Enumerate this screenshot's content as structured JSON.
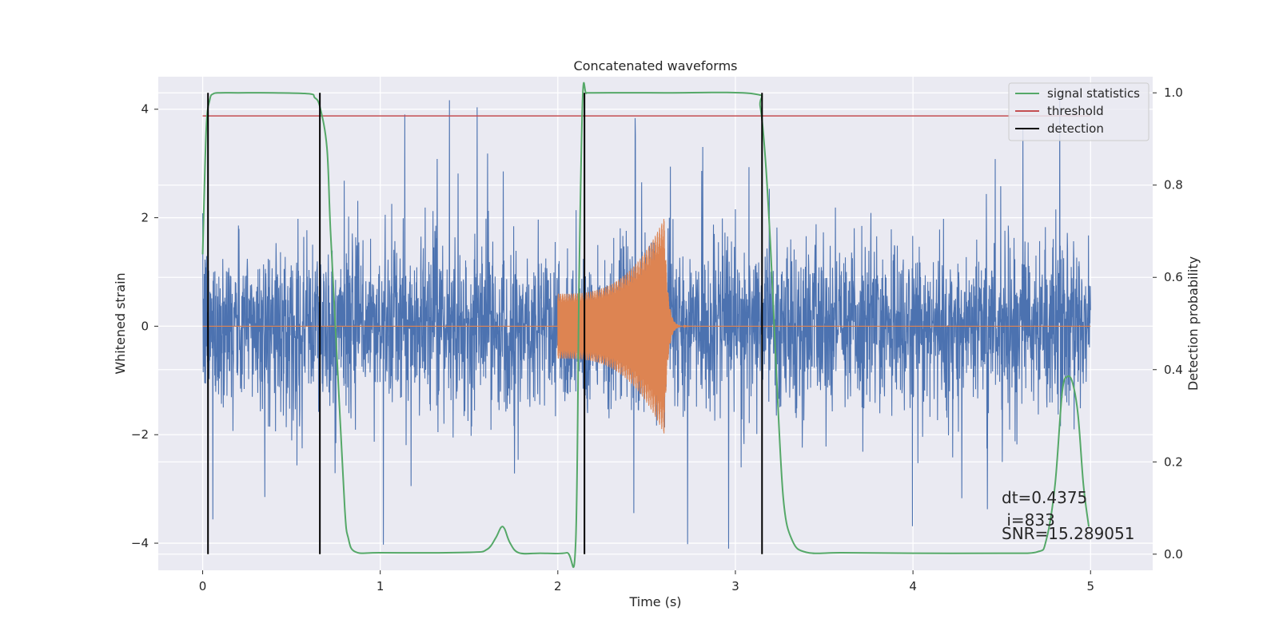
{
  "chart_data": {
    "type": "line",
    "title": "Concatenated waveforms",
    "xlabel": "Time (s)",
    "ylabel": "Whitened strain",
    "y2label": "Detection probability",
    "xlim": [
      -0.25,
      5.35
    ],
    "ylim": [
      -4.5,
      4.6
    ],
    "y2lim": [
      -0.035,
      1.035
    ],
    "xticks": [
      0,
      1,
      2,
      3,
      4,
      5
    ],
    "yticks": [
      -4,
      -2,
      0,
      2,
      4
    ],
    "y2ticks": [
      0.0,
      0.2,
      0.4,
      0.6,
      0.8,
      1.0
    ],
    "y2tick_labels": [
      "0.0",
      "0.2",
      "0.4",
      "0.6",
      "0.8",
      "1.0"
    ],
    "grid": true,
    "legend_position": "top-right",
    "colors": {
      "strain": "#4c72b0",
      "template": "#dd8452",
      "statistic": "#55a868",
      "threshold": "#c44e52",
      "detection": "#000000",
      "background": "#eaeaf2"
    },
    "legend": [
      {
        "label": "signal statistics",
        "color": "#55a868"
      },
      {
        "label": "threshold",
        "color": "#c44e52"
      },
      {
        "label": "detection",
        "color": "#000000"
      }
    ],
    "strain": {
      "x_range": [
        0,
        5
      ],
      "noise_sigma": 0.75
    },
    "template": {
      "start": 2.0,
      "merger": 2.6,
      "start_amplitude": 0.6,
      "peak_amplitude": 2.0,
      "ringdown_end": 3.0
    },
    "signal_statistics": {
      "x": [
        0,
        0.02,
        0.04,
        0.06,
        0.1,
        0.2,
        0.4,
        0.6,
        0.63,
        0.66,
        0.7,
        0.72,
        0.76,
        0.8,
        0.82,
        0.86,
        1.0,
        1.5,
        1.6,
        1.65,
        1.68,
        1.7,
        1.73,
        1.78,
        1.9,
        2.05,
        2.1,
        2.12,
        2.14,
        2.16,
        2.2,
        2.6,
        3.1,
        3.14,
        3.17,
        3.2,
        3.23,
        3.27,
        3.32,
        3.4,
        3.6,
        4.0,
        4.5,
        4.7,
        4.75,
        4.8,
        4.84,
        4.87,
        4.9,
        4.93,
        4.96,
        4.99
      ],
      "y": [
        0.65,
        0.92,
        0.985,
        0.998,
        1.0,
        1.0,
        1.0,
        0.998,
        0.99,
        0.97,
        0.88,
        0.7,
        0.4,
        0.1,
        0.035,
        0.005,
        0.003,
        0.004,
        0.01,
        0.035,
        0.058,
        0.055,
        0.025,
        0.003,
        0.002,
        0.003,
        0.02,
        0.6,
        0.99,
        0.999,
        1.0,
        1.0,
        0.998,
        0.97,
        0.85,
        0.65,
        0.4,
        0.12,
        0.03,
        0.004,
        0.003,
        0.002,
        0.002,
        0.005,
        0.03,
        0.15,
        0.35,
        0.385,
        0.37,
        0.3,
        0.15,
        0.06
      ]
    },
    "threshold": {
      "value": 0.95,
      "x_range": [
        0,
        5
      ]
    },
    "detections": [
      0.03,
      0.66,
      2.15,
      3.15
    ],
    "annotations": [
      "dt=0.4375",
      " i=833",
      "SNR=15.289051"
    ]
  }
}
